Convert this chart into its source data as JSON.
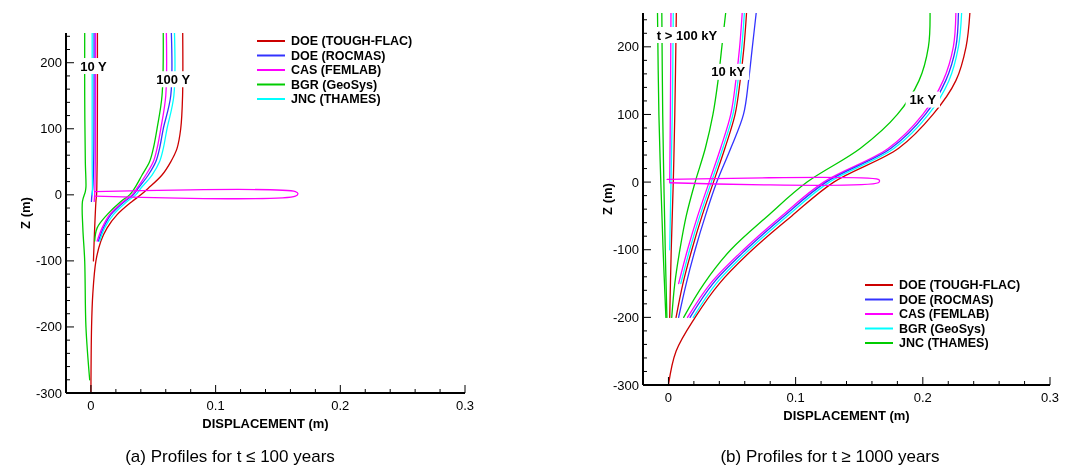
{
  "chart_data": [
    {
      "type": "line",
      "title": "(a) Profiles for t  ≤ 100 years",
      "xlabel": "DISPLACEMENT (m)",
      "ylabel": "Z (m)",
      "legend": "top right",
      "xlim": [
        -0.02,
        0.3
      ],
      "ylim": [
        -300,
        245
      ],
      "xticks": [
        0,
        {
          "value": 0.02,
          "label": null
        },
        {
          "value": 0.04,
          "label": null
        },
        {
          "value": 0.06,
          "label": null
        },
        {
          "value": 0.08,
          "label": null
        },
        0.1,
        {
          "value": 0.12,
          "label": null
        },
        {
          "value": 0.14,
          "label": null
        },
        {
          "value": 0.16,
          "label": null
        },
        {
          "value": 0.18,
          "label": null
        },
        0.2,
        {
          "value": 0.22,
          "label": null
        },
        {
          "value": 0.24,
          "label": null
        },
        {
          "value": 0.26,
          "label": null
        },
        {
          "value": 0.28,
          "label": null
        },
        0.3
      ],
      "yticks": [
        -300,
        {
          "value": -280,
          "label": null
        },
        {
          "value": -260,
          "label": null
        },
        {
          "value": -240,
          "label": null
        },
        {
          "value": -220,
          "label": null
        },
        -200,
        {
          "value": -180,
          "label": null
        },
        {
          "value": -160,
          "label": null
        },
        {
          "value": -140,
          "label": null
        },
        {
          "value": -120,
          "label": null
        },
        -100,
        {
          "value": -80,
          "label": null
        },
        {
          "value": -60,
          "label": null
        },
        {
          "value": -40,
          "label": null
        },
        {
          "value": -20,
          "label": null
        },
        0,
        {
          "value": 20,
          "label": null
        },
        {
          "value": 40,
          "label": null
        },
        {
          "value": 60,
          "label": null
        },
        {
          "value": 80,
          "label": null
        },
        100,
        {
          "value": 120,
          "label": null
        },
        {
          "value": 140,
          "label": null
        },
        {
          "value": 160,
          "label": null
        },
        {
          "value": 180,
          "label": null
        },
        200,
        {
          "value": 220,
          "label": null
        },
        {
          "value": 240,
          "label": null
        }
      ],
      "annotations": [
        {
          "text": "10 Y",
          "x": 0.002,
          "y": 195
        },
        {
          "text": "100 Y",
          "x": 0.066,
          "y": 175
        }
      ],
      "series": [
        {
          "name": "DOE (TOUGH-FLAC)",
          "color": "#cc0000",
          "x": [
            0.0052,
            0.0052,
            0.005,
            0.0047,
            0.0045,
            0.004,
            0.003,
            0.002
          ],
          "values": [
            245,
            150,
            50,
            10,
            0,
            -10,
            -50,
            -100
          ]
        },
        {
          "name": "DOE (ROCMAS)",
          "color": "#3333ff",
          "x": [
            0.0025,
            0.0025,
            0.0022,
            0.0015,
            0.0008,
            0.0004
          ],
          "values": [
            245,
            150,
            50,
            10,
            0,
            -10
          ]
        },
        {
          "name": "CAS (FEMLAB)",
          "color": "#ff00ff",
          "x": [
            0.0037,
            0.0037,
            0.0035,
            0.0032,
            0.003,
            0.0026
          ],
          "values": [
            245,
            150,
            50,
            10,
            0,
            -10
          ]
        },
        {
          "name": "BGR (GeoSys)",
          "color": "#00cc00",
          "x": [
            -0.005,
            -0.005,
            -0.0045,
            -0.004,
            -0.0045,
            -0.0068,
            -0.0065,
            -0.005,
            -0.004,
            -0.001
          ],
          "values": [
            245,
            150,
            50,
            12,
            5,
            -10,
            -50,
            -100,
            -200,
            -280
          ]
        },
        {
          "name": "JNC (THAMES)",
          "color": "#00ffff",
          "x": [
            0.001,
            0.001,
            0.001,
            0.0012,
            0.001
          ],
          "values": [
            245,
            150,
            50,
            10,
            0
          ]
        },
        {
          "color": "#cc0000",
          "x": [
            0.0736,
            0.0735,
            0.072,
            0.069,
            0.064,
            0.057,
            0.046,
            0.04,
            0.033,
            0.021,
            0.013,
            0.008,
            0.004,
            0.0015,
            0.0005,
            0
          ],
          "values": [
            245,
            150,
            100,
            70,
            50,
            30,
            10,
            0,
            -10,
            -30,
            -50,
            -70,
            -100,
            -150,
            -200,
            -300
          ]
        },
        {
          "color": "#3333ff",
          "x": [
            0.0645,
            0.064,
            0.058,
            0.055,
            0.052,
            0.046,
            0.038,
            0.034,
            0.027,
            0.016,
            0.01,
            0.006
          ],
          "values": [
            245,
            150,
            100,
            70,
            50,
            30,
            10,
            0,
            -10,
            -30,
            -50,
            -70
          ]
        },
        {
          "color": "#ff00ff",
          "x": [
            0.0605,
            0.06,
            0.056,
            0.053,
            0.05,
            0.044,
            0.037,
            0.033,
            0.026,
            0.015,
            0.009,
            0.005
          ],
          "values": [
            245,
            150,
            100,
            70,
            50,
            30,
            10,
            0,
            -10,
            -30,
            -50,
            -70
          ]
        },
        {
          "color": "#00ffff",
          "x": [
            0.067,
            0.0665,
            0.061,
            0.058,
            0.055,
            0.049,
            0.04,
            0.036,
            0.029,
            0.018,
            0.011,
            0.007
          ],
          "values": [
            245,
            150,
            100,
            70,
            50,
            30,
            10,
            0,
            -10,
            -30,
            -50,
            -70
          ]
        },
        {
          "color": "#00cc00",
          "x": [
            0.058,
            0.057,
            0.053,
            0.05,
            0.047,
            0.041,
            0.035,
            0.031,
            0.024,
            0.013,
            0.005,
            0.003
          ],
          "values": [
            245,
            150,
            100,
            70,
            50,
            30,
            10,
            0,
            -10,
            -30,
            -50,
            -70
          ]
        },
        {
          "color": "#ff00ff",
          "x": [
            0.003,
            0.164,
            0.166,
            0.164,
            0.003
          ],
          "values": [
            -2,
            -2,
            2,
            5,
            5
          ]
        }
      ]
    },
    {
      "type": "line",
      "title": "(b) Profiles for t  ≥ 1000 years",
      "xlabel": "DISPLACEMENT (m)",
      "ylabel": "Z (m)",
      "legend": "bottom right",
      "xlim": [
        -0.02,
        0.3
      ],
      "ylim": [
        -300,
        250
      ],
      "xticks": [
        0,
        {
          "value": 0.02,
          "label": null
        },
        {
          "value": 0.04,
          "label": null
        },
        {
          "value": 0.06,
          "label": null
        },
        {
          "value": 0.08,
          "label": null
        },
        0.1,
        {
          "value": 0.12,
          "label": null
        },
        {
          "value": 0.14,
          "label": null
        },
        {
          "value": 0.16,
          "label": null
        },
        {
          "value": 0.18,
          "label": null
        },
        0.2,
        {
          "value": 0.22,
          "label": null
        },
        {
          "value": 0.24,
          "label": null
        },
        {
          "value": 0.26,
          "label": null
        },
        {
          "value": 0.28,
          "label": null
        },
        0.3
      ],
      "yticks": [
        -300,
        {
          "value": -280,
          "label": null
        },
        {
          "value": -260,
          "label": null
        },
        {
          "value": -240,
          "label": null
        },
        {
          "value": -220,
          "label": null
        },
        -200,
        {
          "value": -180,
          "label": null
        },
        {
          "value": -160,
          "label": null
        },
        {
          "value": -140,
          "label": null
        },
        {
          "value": -120,
          "label": null
        },
        -100,
        {
          "value": -80,
          "label": null
        },
        {
          "value": -60,
          "label": null
        },
        {
          "value": -40,
          "label": null
        },
        {
          "value": -20,
          "label": null
        },
        0,
        {
          "value": 20,
          "label": null
        },
        {
          "value": 40,
          "label": null
        },
        {
          "value": 60,
          "label": null
        },
        {
          "value": 80,
          "label": null
        },
        100,
        {
          "value": 120,
          "label": null
        },
        {
          "value": 140,
          "label": null
        },
        {
          "value": 160,
          "label": null
        },
        {
          "value": 180,
          "label": null
        },
        200,
        {
          "value": 220,
          "label": null
        },
        {
          "value": 240,
          "label": null
        }
      ],
      "annotations": [
        "t > 100 kY",
        {
          "text": "10 kY",
          "x": 0.047,
          "y": 163
        },
        {
          "text": "1k Y",
          "x": 0.2,
          "y": 122
        }
      ],
      "series": [
        {
          "name": "DOE (TOUGH-FLAC)",
          "color": "#cc0000",
          "x": [
            0.0062,
            0.005,
            0.0038,
            0.0022,
            0.001
          ],
          "values": [
            250,
            100,
            0,
            -100,
            -200
          ]
        },
        {
          "name": "DOE (ROCMAS)",
          "color": "#3333ff",
          "x": [
            0.069,
            0.066,
            0.063,
            0.059,
            0.049,
            0.038,
            0.029,
            0.021,
            0.014,
            0.008
          ],
          "values": [
            250,
            200,
            150,
            100,
            50,
            0,
            -50,
            -100,
            -150,
            -200
          ]
        },
        {
          "name": "CAS (FEMLAB)",
          "color": "#ff00ff",
          "x": [
            0.002,
            0.0015,
            0.001
          ],
          "values": [
            250,
            100,
            0
          ]
        },
        {
          "name": "BGR (GeoSys)",
          "color": "#00ffff",
          "x": [
            0.0038,
            0.003,
            0.002,
            0.001
          ],
          "values": [
            250,
            100,
            0,
            -100
          ]
        },
        {
          "name": "JNC (THAMES)",
          "color": "#00cc00",
          "x": [
            -0.0086,
            -0.0075,
            -0.006,
            -0.0042,
            -0.002
          ],
          "values": [
            250,
            100,
            0,
            -100,
            -200
          ]
        },
        {
          "color": "#00cc00",
          "x": [
            -0.0052,
            -0.0045,
            -0.0036,
            -0.0025,
            -0.0012
          ],
          "values": [
            250,
            100,
            0,
            -100,
            -200
          ]
        },
        {
          "color": "#00cc00",
          "x": [
            0.045,
            0.042,
            0.039,
            0.035,
            0.029,
            0.021,
            0.014,
            0.009,
            0.005,
            0.0026
          ],
          "values": [
            250,
            200,
            150,
            100,
            50,
            0,
            -50,
            -100,
            -150,
            -200
          ]
        },
        {
          "color": "#ff00ff",
          "x": [
            0.058,
            0.056,
            0.053,
            0.049,
            0.041,
            0.032,
            0.023,
            0.015,
            0.008
          ],
          "values": [
            250,
            200,
            150,
            100,
            50,
            0,
            -50,
            -100,
            -150
          ]
        },
        {
          "color": "#00ffff",
          "x": [
            0.0597,
            0.0577,
            0.0547,
            0.0507,
            0.0427,
            0.0337,
            0.0247,
            0.0167,
            0.0097
          ],
          "values": [
            250,
            200,
            150,
            100,
            50,
            0,
            -50,
            -100,
            -150
          ]
        },
        {
          "color": "#cc0000",
          "x": [
            0.0614,
            0.0594,
            0.0564,
            0.0524,
            0.0444,
            0.0354,
            0.0264,
            0.0184,
            0.0114,
            0.006
          ],
          "values": [
            250,
            200,
            150,
            100,
            50,
            0,
            -50,
            -100,
            -150,
            -200
          ]
        },
        {
          "color": "#00cc00",
          "x": [
            0.2057,
            0.2044,
            0.197,
            0.18,
            0.151,
            0.109,
            0.078,
            0.049,
            0.028,
            0.012
          ],
          "values": [
            250,
            200,
            150,
            100,
            50,
            0,
            -50,
            -100,
            -150,
            -200
          ]
        },
        {
          "color": "#ff00ff",
          "x": [
            0.226,
            0.224,
            0.216,
            0.2,
            0.173,
            0.122,
            0.089,
            0.059,
            0.033,
            0.015
          ],
          "values": [
            250,
            200,
            150,
            100,
            50,
            0,
            -50,
            -100,
            -150,
            -200
          ]
        },
        {
          "color": "#3333ff",
          "x": [
            0.228,
            0.226,
            0.218,
            0.202,
            0.175,
            0.124,
            0.091,
            0.061,
            0.035,
            0.017
          ],
          "values": [
            250,
            200,
            150,
            100,
            50,
            0,
            -50,
            -100,
            -150,
            -200
          ]
        },
        {
          "color": "#00ffff",
          "x": [
            0.2305,
            0.228,
            0.2205,
            0.2045,
            0.1775,
            0.1265,
            0.0935,
            0.0635,
            0.0375,
            0.0195
          ],
          "values": [
            250,
            200,
            150,
            100,
            50,
            0,
            -50,
            -100,
            -150,
            -200
          ]
        },
        {
          "color": "#cc0000",
          "x": [
            0.237,
            0.234,
            0.226,
            0.208,
            0.181,
            0.13,
            0.097,
            0.066,
            0.04,
            0.021,
            0.006,
            0
          ],
          "values": [
            250,
            200,
            150,
            100,
            50,
            0,
            -50,
            -100,
            -150,
            -200,
            -250,
            -300
          ]
        },
        {
          "color": "#ff00ff",
          "x": [
            -0.001,
            0.165,
            0.166,
            0.165,
            0.001
          ],
          "values": [
            4,
            4,
            2,
            -1,
            -1
          ]
        }
      ]
    }
  ]
}
